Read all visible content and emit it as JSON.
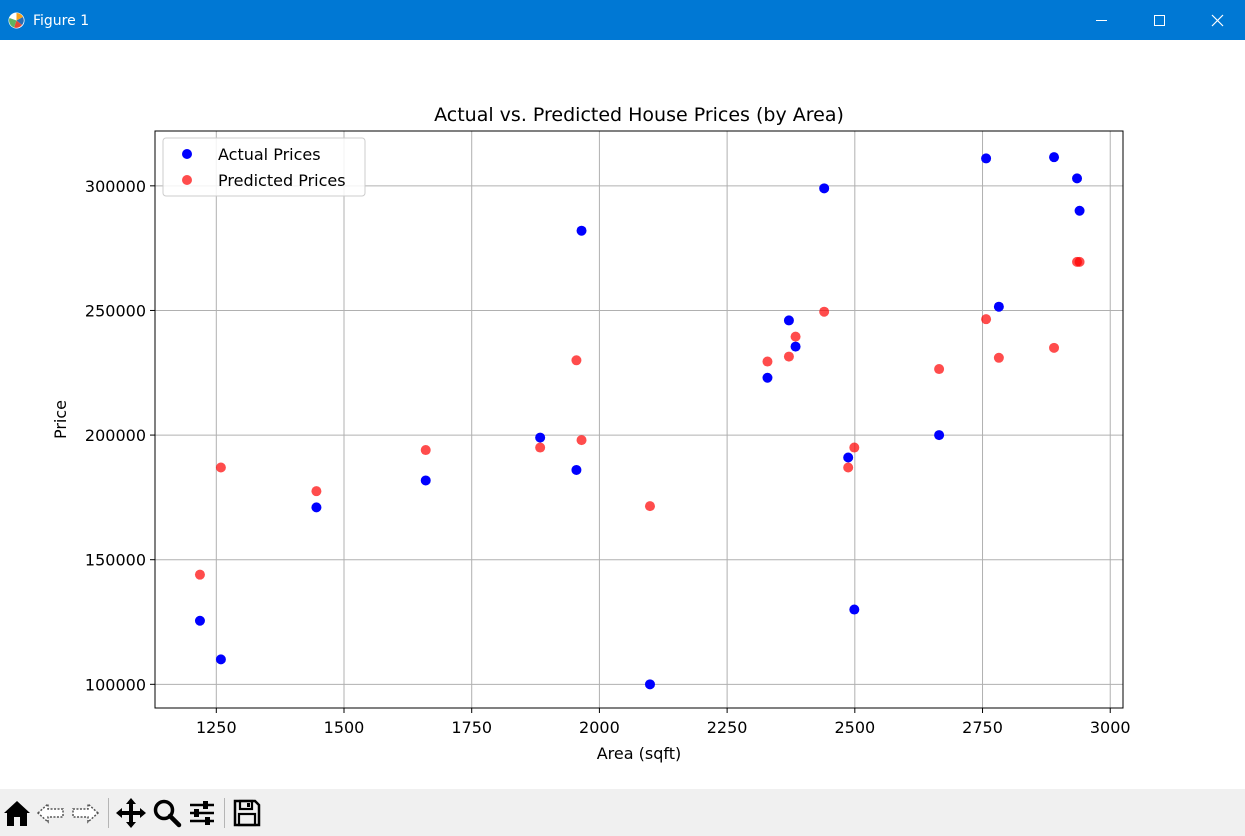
{
  "window": {
    "title": "Figure 1",
    "controls": [
      "minimize",
      "maximize",
      "close"
    ]
  },
  "toolbar": {
    "buttons": [
      "home-icon",
      "back-icon",
      "forward-icon",
      "pan-icon",
      "zoom-icon",
      "configure-subplots-icon",
      "save-icon"
    ]
  },
  "chart_data": {
    "type": "scatter",
    "title": "Actual vs. Predicted House Prices (by Area)",
    "xlabel": "Area (sqft)",
    "ylabel": "Price",
    "xlim": [
      1130,
      3025
    ],
    "ylim": [
      90500,
      322000
    ],
    "xticks": [
      1250,
      1500,
      1750,
      2000,
      2250,
      2500,
      2750,
      3000
    ],
    "yticks": [
      100000,
      150000,
      200000,
      250000,
      300000
    ],
    "xtick_labels": [
      "1250",
      "1500",
      "1750",
      "2000",
      "2250",
      "2500",
      "2750",
      "3000"
    ],
    "ytick_labels": [
      "100000",
      "150000",
      "200000",
      "250000",
      "300000"
    ],
    "grid": true,
    "legend": "top-left",
    "series": [
      {
        "name": "Actual Prices",
        "color": "#0000ff",
        "opacity": 1,
        "points": [
          [
            1218,
            125500
          ],
          [
            1259,
            110000
          ],
          [
            1446,
            171000
          ],
          [
            1660,
            181800
          ],
          [
            1884,
            199000
          ],
          [
            1955,
            186000
          ],
          [
            1965,
            282000
          ],
          [
            2099,
            100000
          ],
          [
            2329,
            223000
          ],
          [
            2371,
            246000
          ],
          [
            2384,
            235500
          ],
          [
            2440,
            299000
          ],
          [
            2487,
            191000
          ],
          [
            2499,
            130000
          ],
          [
            2665,
            200000
          ],
          [
            2757,
            311000
          ],
          [
            2782,
            251500
          ],
          [
            2890,
            311500
          ],
          [
            2935,
            303000
          ],
          [
            2940,
            290000
          ]
        ]
      },
      {
        "name": "Predicted Prices",
        "color": "#ff0000",
        "opacity": 0.7,
        "points": [
          [
            1218,
            144000
          ],
          [
            1259,
            187000
          ],
          [
            1446,
            177500
          ],
          [
            1660,
            194000
          ],
          [
            1884,
            195000
          ],
          [
            1955,
            230000
          ],
          [
            1965,
            198000
          ],
          [
            2099,
            171500
          ],
          [
            2329,
            229500
          ],
          [
            2371,
            231500
          ],
          [
            2384,
            239500
          ],
          [
            2440,
            249500
          ],
          [
            2487,
            187000
          ],
          [
            2499,
            195000
          ],
          [
            2665,
            226500
          ],
          [
            2757,
            246500
          ],
          [
            2782,
            231000
          ],
          [
            2890,
            235000
          ],
          [
            2935,
            269500
          ],
          [
            2940,
            269500
          ]
        ]
      }
    ]
  }
}
